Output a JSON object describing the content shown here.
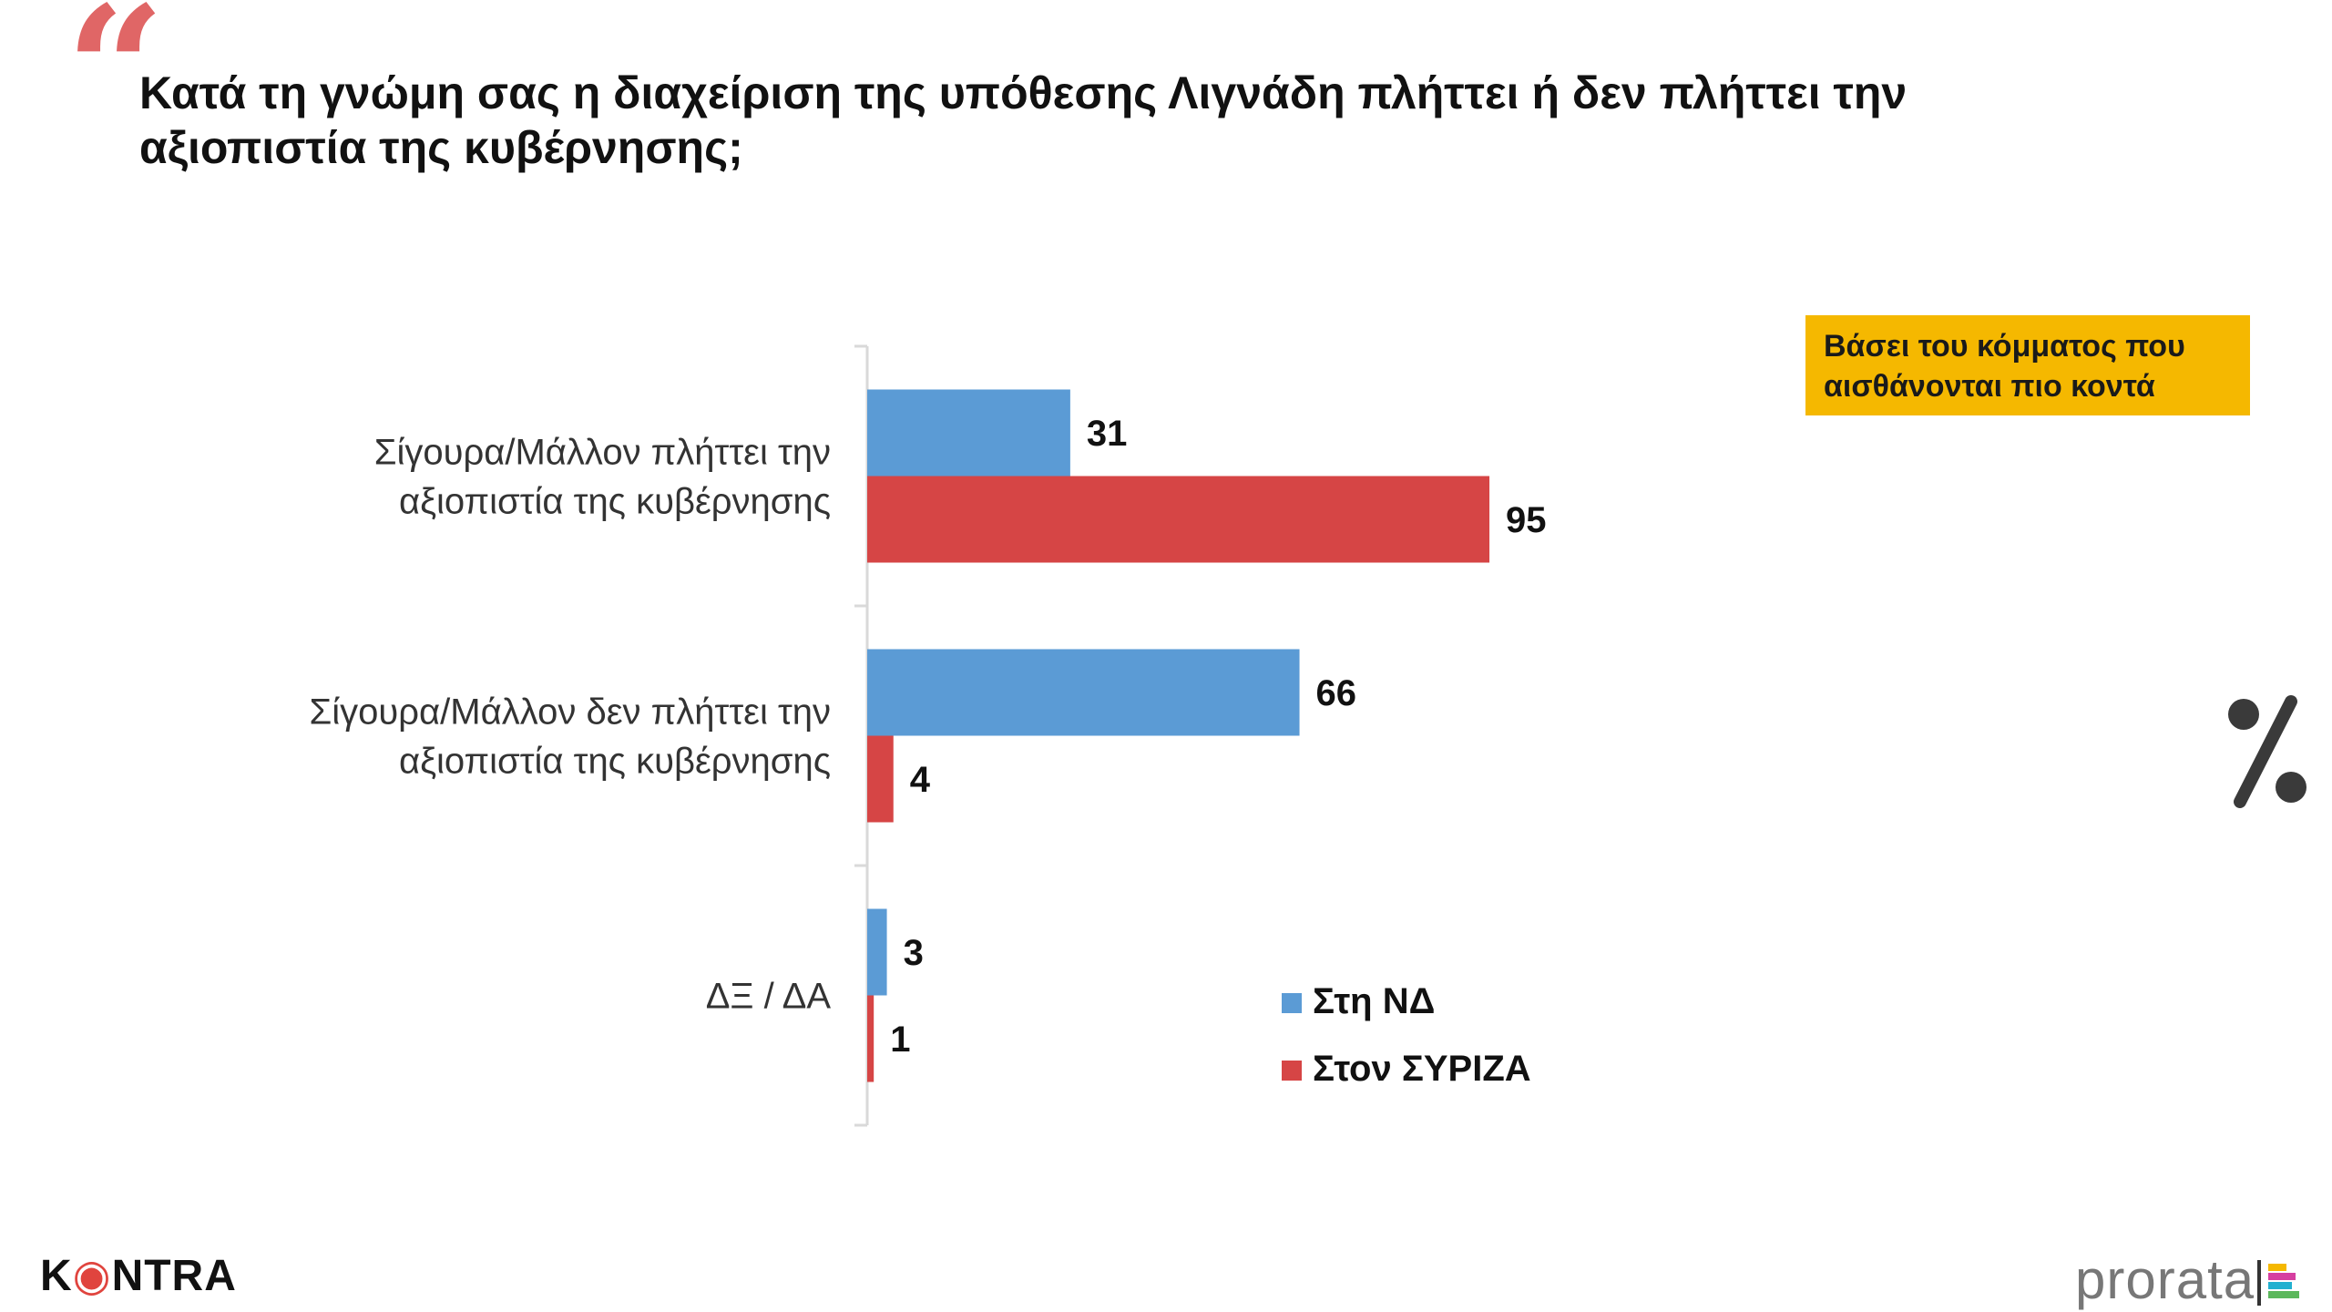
{
  "header": {
    "quote_mark": "“",
    "title": "Κατά τη γνώμη σας η διαχείριση της υπόθεσης Λιγνάδη πλήττει ή δεν πλήττει την αξιοπιστία της κυβέρνησης;"
  },
  "badge": {
    "text": "Βάσει του κόμματος που αισθάνονται πιο κοντά"
  },
  "chart_data": {
    "type": "bar",
    "orientation": "horizontal",
    "title": "Κατά τη γνώμη σας η διαχείριση της υπόθεσης Λιγνάδη πλήττει ή δεν πλήττει την αξιοπιστία της κυβέρνησης;",
    "unit": "%",
    "categories": [
      [
        "Σίγουρα/Μάλλον πλήττει την",
        "αξιοπιστία της κυβέρνησης"
      ],
      [
        "Σίγουρα/Μάλλον δεν πλήττει την",
        "αξιοπιστία της κυβέρνησης"
      ],
      [
        "ΔΞ / ΔΑ"
      ]
    ],
    "series": [
      {
        "name": "Στη ΝΔ",
        "color": "#5b9bd5",
        "values": [
          31,
          66,
          3
        ]
      },
      {
        "name": "Στον ΣΥΡΙΖΑ",
        "color": "#d64545",
        "values": [
          95,
          4,
          1
        ]
      }
    ],
    "xlim": [
      0,
      100
    ],
    "grid": false,
    "legend_position": "bottom-right"
  },
  "footer": {
    "brand_left_prefix": "K",
    "brand_left_mark": "◉",
    "brand_left_suffix": "NTRA",
    "brand_right": "prorata"
  },
  "colors": {
    "accent_quote": "#e06666",
    "badge_bg": "#f5b800",
    "series_nd": "#5b9bd5",
    "series_syriza": "#d64545"
  }
}
